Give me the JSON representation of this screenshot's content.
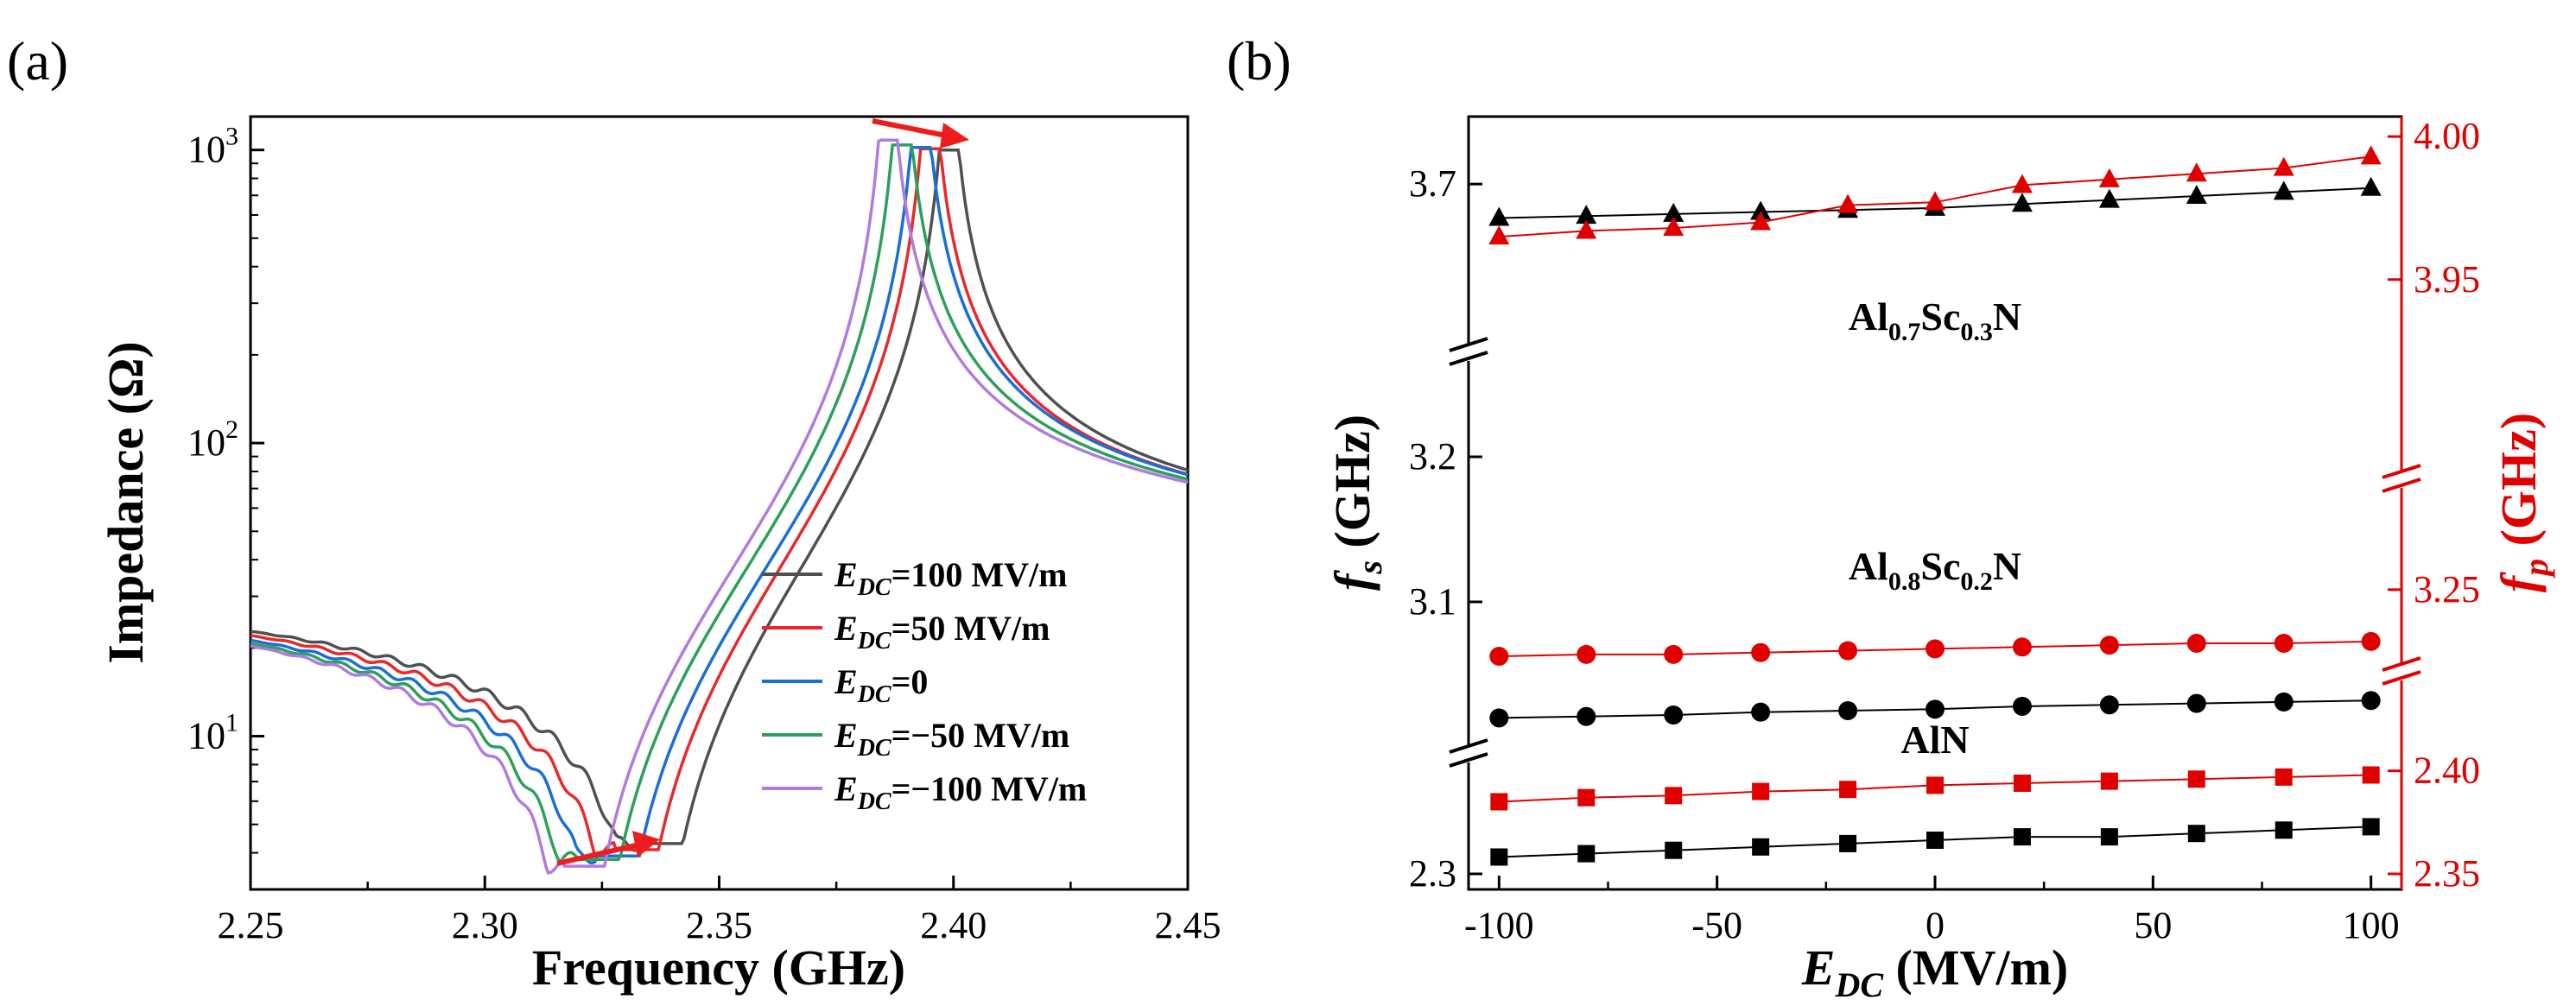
{
  "chart_data": [
    {
      "panel": "(a)",
      "type": "line",
      "xlabel": "Frequency (GHz)",
      "ylabel": "Impedance (Ω)",
      "xlim": [
        2.25,
        2.45
      ],
      "ylim": [
        3,
        1300
      ],
      "yscale": "log",
      "x_ticks": [
        "2.25",
        "2.30",
        "2.35",
        "2.40",
        "2.45"
      ],
      "y_ticks": [
        {
          "base": "10",
          "exp": "1",
          "value": 10
        },
        {
          "base": "10",
          "exp": "2",
          "value": 100
        },
        {
          "base": "10",
          "exp": "3",
          "value": 1000
        }
      ],
      "legend_position": "bottom-right",
      "annotation": "red arrows indicate shift of resonance and antiresonance toward higher frequency with increasing E_DC",
      "series": [
        {
          "name_sym": "E",
          "name_sub": "DC",
          "name_rest": "=100 MV/m",
          "color": "#505050",
          "fr": 2.336,
          "zr": 4.3,
          "fa": 2.399,
          "za": 1000
        },
        {
          "name_sym": "E",
          "name_sub": "DC",
          "name_rest": "=50 MV/m",
          "color": "#e8282a",
          "fr": 2.331,
          "zr": 4.1,
          "fa": 2.395,
          "za": 1010
        },
        {
          "name_sym": "E",
          "name_sub": "DC",
          "name_rest": "=0",
          "color": "#1a6ed8",
          "fr": 2.327,
          "zr": 3.9,
          "fa": 2.393,
          "za": 1020
        },
        {
          "name_sym": "E",
          "name_sub": "DC",
          "name_rest": "=−50 MV/m",
          "color": "#2ca05a",
          "fr": 2.323,
          "zr": 3.8,
          "fa": 2.389,
          "za": 1040
        },
        {
          "name_sym": "E",
          "name_sub": "DC",
          "name_rest": "=−100 MV/m",
          "color": "#b07be0",
          "fr": 2.32,
          "zr": 3.6,
          "fa": 2.386,
          "za": 1080
        }
      ]
    },
    {
      "panel": "(b)",
      "type": "scatter",
      "xlabel_sym": "E",
      "xlabel_sub": "DC",
      "xlabel_rest": " (MV/m)",
      "ylabel_left_sym": "f",
      "ylabel_left_sub": "s",
      "ylabel_left_rest": " (GHz)",
      "ylabel_right_sym": "f",
      "ylabel_right_sub": "p",
      "ylabel_right_rest": " (GHz)",
      "xlim": [
        -107,
        107
      ],
      "x": [
        -100,
        -80,
        -60,
        -40,
        -20,
        0,
        20,
        40,
        60,
        80,
        100
      ],
      "x_ticks": [
        "-100",
        "-50",
        "0",
        "50",
        "100"
      ],
      "left_y_ticks": [
        "3.7",
        "3.2",
        "3.1",
        "2.3"
      ],
      "right_y_ticks": [
        "4.00",
        "3.95",
        "3.25",
        "2.40",
        "2.35"
      ],
      "groups": [
        {
          "material_base": "Al",
          "material_sub1": "0.7",
          "material_mid": "Sc",
          "material_sub2": "0.3",
          "material_end": "N",
          "marker": "triangle",
          "fs_GHz": [
            3.683,
            3.684,
            3.685,
            3.686,
            3.687,
            3.688,
            3.69,
            3.692,
            3.694,
            3.696,
            3.698
          ],
          "fp_GHz": [
            3.965,
            3.967,
            3.968,
            3.97,
            3.976,
            3.977,
            3.983,
            3.985,
            3.987,
            3.989,
            3.993
          ]
        },
        {
          "material_base": "Al",
          "material_sub1": "0.8",
          "material_mid": "Sc",
          "material_sub2": "0.2",
          "material_end": "N",
          "marker": "circle",
          "fs_GHz": [
            3.02,
            3.021,
            3.022,
            3.024,
            3.025,
            3.026,
            3.028,
            3.029,
            3.03,
            3.031,
            3.032
          ],
          "fp_GHz": [
            3.214,
            3.215,
            3.215,
            3.216,
            3.217,
            3.218,
            3.219,
            3.22,
            3.221,
            3.221,
            3.222
          ]
        },
        {
          "material_base": "AlN",
          "material_sub1": "",
          "material_mid": "",
          "material_sub2": "",
          "material_end": "",
          "marker": "square",
          "fs_GHz": [
            2.305,
            2.306,
            2.307,
            2.308,
            2.309,
            2.31,
            2.311,
            2.311,
            2.312,
            2.313,
            2.314
          ],
          "fp_GHz": [
            2.385,
            2.387,
            2.388,
            2.39,
            2.391,
            2.393,
            2.394,
            2.395,
            2.396,
            2.397,
            2.398
          ]
        }
      ],
      "colors": {
        "fs": "#000000",
        "fp": "#e00000"
      }
    }
  ]
}
